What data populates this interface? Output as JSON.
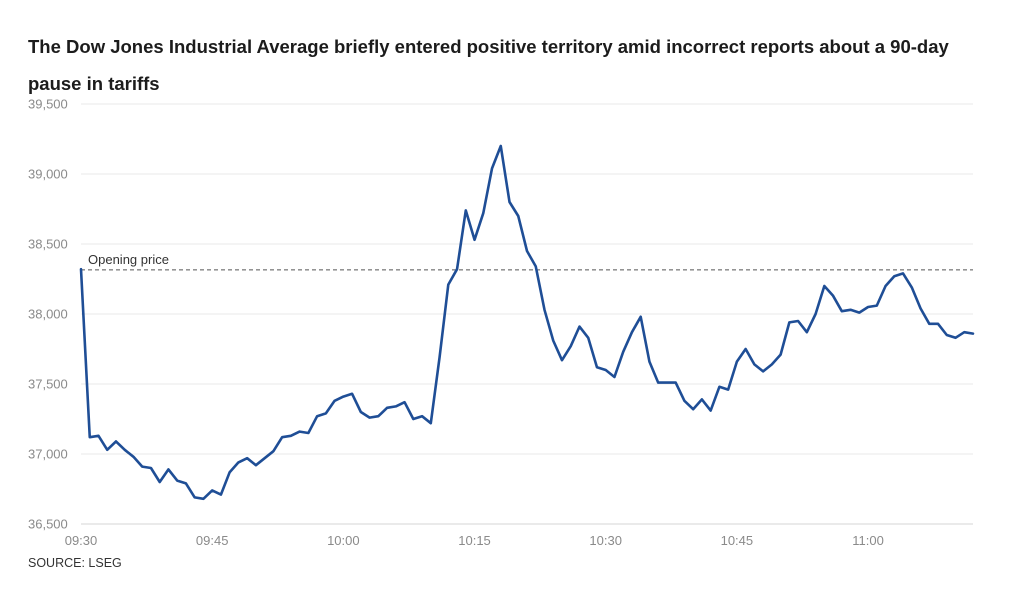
{
  "chart_data": {
    "type": "line",
    "title": "The Dow Jones Industrial Average briefly entered positive territory amid incorrect reports about a 90-day pause in tariffs",
    "source": "SOURCE: LSEG",
    "xlabel": "",
    "ylabel": "",
    "ylim": [
      36500,
      39500
    ],
    "y_ticks": [
      36500,
      37000,
      37500,
      38000,
      38500,
      39000,
      39500
    ],
    "y_tick_labels": [
      "36,500",
      "37,000",
      "37,500",
      "38,000",
      "38,500",
      "39,000",
      "39,500"
    ],
    "x_ticks": [
      "09:30",
      "09:45",
      "10:00",
      "10:15",
      "10:30",
      "10:45",
      "11:00"
    ],
    "x_range": [
      "09:30",
      "11:12"
    ],
    "grid": true,
    "reference_line": {
      "label": "Opening price",
      "value": 38315
    },
    "colors": {
      "line": "#1f4e96",
      "grid": "#e8e8e8",
      "reference": "#555555"
    },
    "series": [
      {
        "x": [
          "09:30",
          "09:31",
          "09:32",
          "09:33",
          "09:34",
          "09:35",
          "09:36",
          "09:37",
          "09:38",
          "09:39",
          "09:40",
          "09:41",
          "09:42",
          "09:43",
          "09:44",
          "09:45",
          "09:46",
          "09:47",
          "09:48",
          "09:49",
          "09:50",
          "09:51",
          "09:52",
          "09:53",
          "09:54",
          "09:55",
          "09:56",
          "09:57",
          "09:58",
          "09:59",
          "10:00",
          "10:01",
          "10:02",
          "10:03",
          "10:04",
          "10:05",
          "10:06",
          "10:07",
          "10:08",
          "10:09",
          "10:10",
          "10:11",
          "10:12",
          "10:13",
          "10:14",
          "10:15",
          "10:16",
          "10:17",
          "10:18",
          "10:19",
          "10:20",
          "10:21",
          "10:22",
          "10:23",
          "10:24",
          "10:25",
          "10:26",
          "10:27",
          "10:28",
          "10:29",
          "10:30",
          "10:31",
          "10:32",
          "10:33",
          "10:34",
          "10:35",
          "10:36",
          "10:37",
          "10:38",
          "10:39",
          "10:40",
          "10:41",
          "10:42",
          "10:43",
          "10:44",
          "10:45",
          "10:46",
          "10:47",
          "10:48",
          "10:49",
          "10:50",
          "10:51",
          "10:52",
          "10:53",
          "10:54",
          "10:55",
          "10:56",
          "10:57",
          "10:58",
          "10:59",
          "11:00",
          "11:01",
          "11:02",
          "11:03",
          "11:04",
          "11:05",
          "11:06",
          "11:07",
          "11:08",
          "11:09",
          "11:10",
          "11:11",
          "11:12"
        ],
        "values": [
          38320,
          37120,
          37130,
          37030,
          37090,
          37030,
          36980,
          36910,
          36900,
          36800,
          36890,
          36810,
          36790,
          36690,
          36680,
          36740,
          36710,
          36870,
          36940,
          36970,
          36920,
          36970,
          37020,
          37120,
          37130,
          37160,
          37150,
          37270,
          37290,
          37380,
          37410,
          37430,
          37300,
          37260,
          37270,
          37330,
          37340,
          37370,
          37250,
          37270,
          37220,
          37690,
          38210,
          38320,
          38740,
          38530,
          38720,
          39040,
          39200,
          38800,
          38700,
          38450,
          38340,
          38030,
          37810,
          37670,
          37770,
          37910,
          37830,
          37620,
          37600,
          37550,
          37730,
          37870,
          37980,
          37660,
          37510,
          37510,
          37510,
          37380,
          37320,
          37390,
          37310,
          37480,
          37460,
          37660,
          37750,
          37640,
          37590,
          37640,
          37710,
          37940,
          37950,
          37870,
          38000,
          38200,
          38130,
          38020,
          38030,
          38010,
          38050,
          38060,
          38200,
          38270,
          38290,
          38190,
          38040,
          37930,
          37930,
          37850,
          37830,
          37870,
          37860
        ]
      }
    ]
  }
}
